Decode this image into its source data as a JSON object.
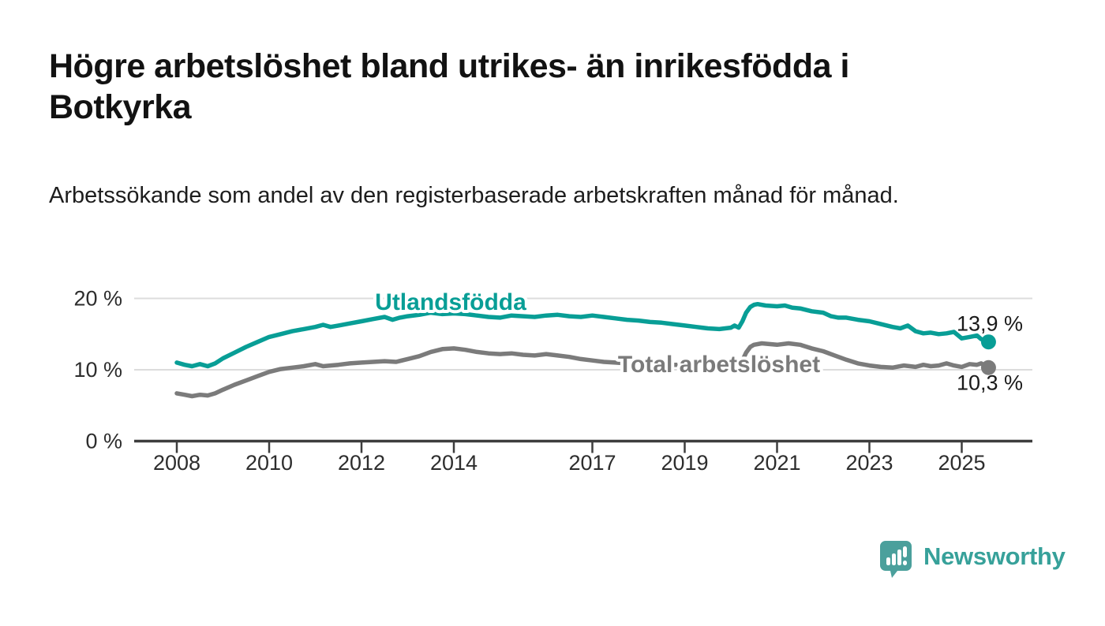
{
  "header": {
    "title": "Högre arbetslöshet bland utrikes- än inrikesfödda i Botkyrka",
    "subtitle": "Arbetssökande som andel av den registerbaserade arbetskraften månad för månad."
  },
  "chart_data": {
    "type": "line",
    "title": "Högre arbetslöshet bland utrikes- än inrikesfödda i Botkyrka",
    "subtitle": "Arbetssökande som andel av den registerbaserade arbetskraften månad för månad.",
    "xlabel": "",
    "ylabel": "",
    "ylim": [
      0,
      21.5
    ],
    "xlim": [
      2007.1,
      2026.5
    ],
    "grid": "horizontal",
    "legend_position": "inline-labels",
    "yticks": [
      {
        "label": "20 %",
        "value": 20
      },
      {
        "label": "10 %",
        "value": 10
      },
      {
        "label": "0 %",
        "value": 0
      }
    ],
    "xticks": [
      {
        "label": "2008",
        "value": 2008
      },
      {
        "label": "2010",
        "value": 2010
      },
      {
        "label": "2012",
        "value": 2012
      },
      {
        "label": "2014",
        "value": 2014
      },
      {
        "label": "2017",
        "value": 2017
      },
      {
        "label": "2019",
        "value": 2019
      },
      {
        "label": "2021",
        "value": 2021
      },
      {
        "label": "2023",
        "value": 2023
      },
      {
        "label": "2025",
        "value": 2025
      }
    ],
    "series": [
      {
        "name": "Utlandsfödda",
        "color": "#089e96",
        "end_label": "13,9 %",
        "points": [
          [
            2008.0,
            11.0
          ],
          [
            2008.17,
            10.7
          ],
          [
            2008.33,
            10.5
          ],
          [
            2008.5,
            10.8
          ],
          [
            2008.67,
            10.5
          ],
          [
            2008.83,
            10.9
          ],
          [
            2009.0,
            11.6
          ],
          [
            2009.25,
            12.4
          ],
          [
            2009.5,
            13.2
          ],
          [
            2009.75,
            13.9
          ],
          [
            2010.0,
            14.6
          ],
          [
            2010.25,
            15.0
          ],
          [
            2010.5,
            15.4
          ],
          [
            2010.75,
            15.7
          ],
          [
            2011.0,
            16.0
          ],
          [
            2011.17,
            16.3
          ],
          [
            2011.33,
            16.0
          ],
          [
            2011.5,
            16.2
          ],
          [
            2011.75,
            16.5
          ],
          [
            2012.0,
            16.8
          ],
          [
            2012.25,
            17.1
          ],
          [
            2012.5,
            17.4
          ],
          [
            2012.67,
            17.0
          ],
          [
            2012.83,
            17.3
          ],
          [
            2013.0,
            17.5
          ],
          [
            2013.25,
            17.7
          ],
          [
            2013.5,
            18.0
          ],
          [
            2013.75,
            17.8
          ],
          [
            2014.0,
            17.9
          ],
          [
            2014.25,
            17.8
          ],
          [
            2014.5,
            17.6
          ],
          [
            2014.75,
            17.4
          ],
          [
            2015.0,
            17.3
          ],
          [
            2015.25,
            17.6
          ],
          [
            2015.5,
            17.5
          ],
          [
            2015.75,
            17.4
          ],
          [
            2016.0,
            17.6
          ],
          [
            2016.25,
            17.7
          ],
          [
            2016.5,
            17.5
          ],
          [
            2016.75,
            17.4
          ],
          [
            2017.0,
            17.6
          ],
          [
            2017.25,
            17.4
          ],
          [
            2017.5,
            17.2
          ],
          [
            2017.75,
            17.0
          ],
          [
            2018.0,
            16.9
          ],
          [
            2018.25,
            16.7
          ],
          [
            2018.5,
            16.6
          ],
          [
            2018.75,
            16.4
          ],
          [
            2019.0,
            16.2
          ],
          [
            2019.25,
            16.0
          ],
          [
            2019.5,
            15.8
          ],
          [
            2019.75,
            15.7
          ],
          [
            2020.0,
            15.9
          ],
          [
            2020.08,
            16.2
          ],
          [
            2020.17,
            15.9
          ],
          [
            2020.25,
            16.8
          ],
          [
            2020.33,
            18.0
          ],
          [
            2020.42,
            18.8
          ],
          [
            2020.5,
            19.1
          ],
          [
            2020.58,
            19.2
          ],
          [
            2020.75,
            19.0
          ],
          [
            2021.0,
            18.9
          ],
          [
            2021.17,
            19.0
          ],
          [
            2021.33,
            18.7
          ],
          [
            2021.5,
            18.6
          ],
          [
            2021.75,
            18.2
          ],
          [
            2022.0,
            18.0
          ],
          [
            2022.17,
            17.5
          ],
          [
            2022.33,
            17.3
          ],
          [
            2022.5,
            17.3
          ],
          [
            2022.75,
            17.0
          ],
          [
            2023.0,
            16.8
          ],
          [
            2023.25,
            16.4
          ],
          [
            2023.5,
            16.0
          ],
          [
            2023.67,
            15.8
          ],
          [
            2023.83,
            16.2
          ],
          [
            2024.0,
            15.4
          ],
          [
            2024.17,
            15.1
          ],
          [
            2024.33,
            15.2
          ],
          [
            2024.5,
            15.0
          ],
          [
            2024.67,
            15.1
          ],
          [
            2024.83,
            15.3
          ],
          [
            2025.0,
            14.4
          ],
          [
            2025.17,
            14.6
          ],
          [
            2025.33,
            14.8
          ],
          [
            2025.42,
            14.3
          ],
          [
            2025.58,
            13.9
          ]
        ]
      },
      {
        "name": "Total arbetslöshet",
        "color": "#7b7b7b",
        "end_label": "10,3 %",
        "points": [
          [
            2008.0,
            6.7
          ],
          [
            2008.17,
            6.5
          ],
          [
            2008.33,
            6.3
          ],
          [
            2008.5,
            6.5
          ],
          [
            2008.67,
            6.4
          ],
          [
            2008.83,
            6.7
          ],
          [
            2009.0,
            7.2
          ],
          [
            2009.25,
            7.9
          ],
          [
            2009.5,
            8.5
          ],
          [
            2009.75,
            9.1
          ],
          [
            2010.0,
            9.7
          ],
          [
            2010.25,
            10.1
          ],
          [
            2010.5,
            10.3
          ],
          [
            2010.75,
            10.5
          ],
          [
            2011.0,
            10.8
          ],
          [
            2011.17,
            10.5
          ],
          [
            2011.33,
            10.6
          ],
          [
            2011.5,
            10.7
          ],
          [
            2011.75,
            10.9
          ],
          [
            2012.0,
            11.0
          ],
          [
            2012.25,
            11.1
          ],
          [
            2012.5,
            11.2
          ],
          [
            2012.75,
            11.1
          ],
          [
            2013.0,
            11.5
          ],
          [
            2013.25,
            11.9
          ],
          [
            2013.5,
            12.5
          ],
          [
            2013.75,
            12.9
          ],
          [
            2014.0,
            13.0
          ],
          [
            2014.25,
            12.8
          ],
          [
            2014.5,
            12.5
          ],
          [
            2014.75,
            12.3
          ],
          [
            2015.0,
            12.2
          ],
          [
            2015.25,
            12.3
          ],
          [
            2015.5,
            12.1
          ],
          [
            2015.75,
            12.0
          ],
          [
            2016.0,
            12.2
          ],
          [
            2016.25,
            12.0
          ],
          [
            2016.5,
            11.8
          ],
          [
            2016.75,
            11.5
          ],
          [
            2017.0,
            11.3
          ],
          [
            2017.25,
            11.1
          ],
          [
            2017.5,
            11.0
          ],
          [
            2017.75,
            10.9
          ],
          [
            2018.0,
            10.9
          ],
          [
            2018.25,
            10.8
          ],
          [
            2018.5,
            10.8
          ],
          [
            2018.75,
            10.7
          ],
          [
            2019.0,
            10.7
          ],
          [
            2019.25,
            10.6
          ],
          [
            2019.5,
            10.5
          ],
          [
            2019.75,
            10.3
          ],
          [
            2020.0,
            10.4
          ],
          [
            2020.17,
            10.6
          ],
          [
            2020.25,
            11.3
          ],
          [
            2020.33,
            12.4
          ],
          [
            2020.42,
            13.2
          ],
          [
            2020.5,
            13.5
          ],
          [
            2020.67,
            13.7
          ],
          [
            2020.83,
            13.6
          ],
          [
            2021.0,
            13.5
          ],
          [
            2021.25,
            13.7
          ],
          [
            2021.5,
            13.5
          ],
          [
            2021.75,
            13.0
          ],
          [
            2022.0,
            12.6
          ],
          [
            2022.25,
            12.0
          ],
          [
            2022.5,
            11.4
          ],
          [
            2022.75,
            10.9
          ],
          [
            2023.0,
            10.6
          ],
          [
            2023.25,
            10.4
          ],
          [
            2023.5,
            10.3
          ],
          [
            2023.75,
            10.6
          ],
          [
            2024.0,
            10.4
          ],
          [
            2024.17,
            10.7
          ],
          [
            2024.33,
            10.5
          ],
          [
            2024.5,
            10.6
          ],
          [
            2024.67,
            10.9
          ],
          [
            2024.83,
            10.6
          ],
          [
            2025.0,
            10.4
          ],
          [
            2025.17,
            10.8
          ],
          [
            2025.33,
            10.7
          ],
          [
            2025.42,
            10.9
          ],
          [
            2025.58,
            10.3
          ]
        ]
      }
    ],
    "colors": {
      "grid": "#dcdcdc",
      "axis": "#3d3d3d",
      "tick_text": "#2d2d2d",
      "value_label_text": "#1a1a1a"
    }
  },
  "footer": {
    "brand": "Newsworthy",
    "logo_icon": "speech-bubble-bar-chart-icon",
    "brand_color": "#37a19a",
    "logo_bubble_color": "#4ba09c"
  }
}
